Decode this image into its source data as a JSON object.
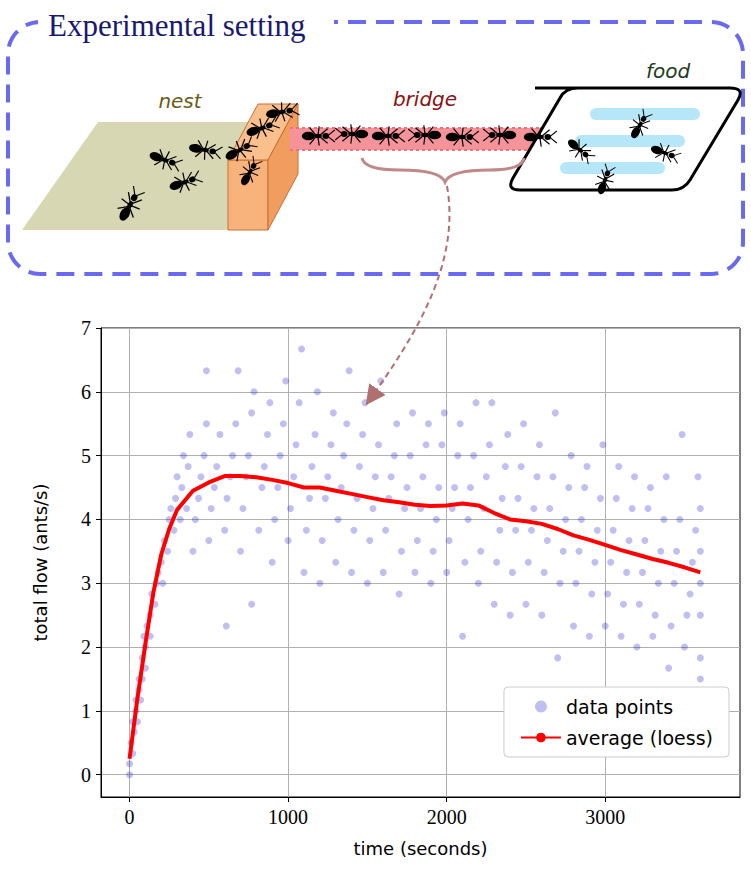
{
  "diagram": {
    "title": "Experimental setting",
    "labels": [
      "nest",
      "bridge",
      "food"
    ]
  },
  "chart_data": {
    "type": "scatter",
    "x_label": "time (seconds)",
    "y_label": "total flow (ants/s)",
    "xlim": [
      -180,
      3850
    ],
    "xticks": [
      0,
      1000,
      2000,
      3000
    ],
    "ylim": [
      -0.35,
      7
    ],
    "yticks": [
      0,
      1,
      2,
      3,
      4,
      5,
      6,
      7
    ],
    "grid": true,
    "legend": "lower right",
    "series": [
      {
        "name": "data points",
        "type": "scatter",
        "color": "#0000cc",
        "marker": "circle",
        "x": [
          0,
          0,
          10,
          20,
          20,
          30,
          40,
          40,
          50,
          60,
          60,
          70,
          80,
          80,
          90,
          100,
          100,
          110,
          130,
          130,
          140,
          160,
          170,
          180,
          200,
          210,
          220,
          240,
          250,
          260,
          280,
          290,
          300,
          320,
          330,
          340,
          360,
          370,
          380,
          400,
          415,
          435,
          450,
          470,
          485,
          500,
          515,
          535,
          550,
          570,
          485,
          600,
          615,
          635,
          650,
          670,
          685,
          610,
          700,
          715,
          735,
          750,
          770,
          785,
          770,
          815,
          835,
          850,
          870,
          885,
          900,
          915,
          935,
          950,
          970,
          985,
          1000,
          1015,
          1035,
          1050,
          1070,
          1085,
          1100,
          1115,
          1135,
          1150,
          1170,
          1185,
          1200,
          1215,
          1235,
          1250,
          1270,
          1285,
          1300,
          1315,
          1335,
          1350,
          1370,
          1385,
          1400,
          1415,
          1435,
          1450,
          1470,
          1485,
          1500,
          1515,
          1535,
          1550,
          1570,
          1585,
          1600,
          1615,
          1635,
          1650,
          1670,
          1685,
          1700,
          1715,
          1735,
          1750,
          1770,
          1785,
          1800,
          1815,
          1835,
          1850,
          1870,
          1885,
          1900,
          1915,
          1935,
          1950,
          1970,
          1985,
          2000,
          2015,
          2035,
          2050,
          2070,
          2085,
          2100,
          2115,
          2135,
          2150,
          2170,
          2185,
          2200,
          2215,
          2235,
          2250,
          2270,
          2285,
          2300,
          2315,
          2335,
          2350,
          2370,
          2385,
          2400,
          2415,
          2435,
          2450,
          2470,
          2485,
          2500,
          2515,
          2535,
          2550,
          2570,
          2585,
          2600,
          2615,
          2635,
          2650,
          2670,
          2685,
          2700,
          2715,
          2735,
          2750,
          2770,
          2785,
          2800,
          2815,
          2835,
          2850,
          2870,
          2885,
          2900,
          2915,
          2935,
          2950,
          2970,
          2985,
          3000,
          3015,
          3035,
          3050,
          3070,
          3085,
          3100,
          3115,
          3135,
          3150,
          3170,
          3185,
          3200,
          3215,
          3235,
          3250,
          3270,
          3285,
          3300,
          3315,
          3335,
          3350,
          3370,
          3385,
          3400,
          3415,
          3435,
          3450,
          3470,
          3485,
          3500,
          3515,
          3535,
          3550,
          3570,
          3585,
          3600,
          3600,
          3600,
          3600,
          3600,
          3600
        ],
        "values": [
          0,
          0.17,
          0.5,
          0.33,
          0.83,
          0.67,
          1,
          1.17,
          0.83,
          1.33,
          1.5,
          1.17,
          1.83,
          1.5,
          2.17,
          2,
          1.67,
          2.33,
          2.5,
          2.17,
          2.83,
          2.67,
          3,
          3.17,
          3.33,
          3,
          3.67,
          3.5,
          4,
          4.17,
          3.83,
          4.33,
          4.67,
          4,
          4.5,
          5,
          4.17,
          4.83,
          5.33,
          3.5,
          4,
          4.33,
          4.67,
          5,
          5.5,
          3.67,
          4.17,
          4.5,
          4.83,
          5.33,
          6.33,
          3.83,
          4.33,
          4.67,
          5,
          5.5,
          6.33,
          2.33,
          3.5,
          4.17,
          4.67,
          5,
          5.67,
          6,
          2.67,
          3.83,
          4.5,
          4.83,
          5.33,
          5.83,
          3.33,
          4,
          4.5,
          5,
          5.5,
          6.17,
          3.67,
          4.17,
          4.67,
          5.17,
          5.83,
          6.67,
          3.17,
          3.83,
          4.33,
          4.83,
          5.33,
          6,
          3,
          3.67,
          4.33,
          4.67,
          5.17,
          5.67,
          3.33,
          4,
          4.5,
          5,
          5.5,
          6.33,
          3.17,
          3.83,
          4.33,
          4.83,
          5.33,
          5.83,
          3,
          3.67,
          4.17,
          4.67,
          5.17,
          6.17,
          3.17,
          3.83,
          4.33,
          4.67,
          5,
          5.5,
          2.83,
          3.5,
          4.17,
          4.5,
          5,
          5.67,
          3.17,
          3.67,
          4.17,
          4.67,
          5.17,
          5.5,
          3,
          3.5,
          4,
          4.5,
          5.17,
          5.67,
          3.17,
          3.67,
          4.17,
          4.5,
          5,
          5.5,
          2.17,
          3.33,
          4,
          4.5,
          5,
          5.83,
          3,
          3.5,
          4.17,
          4.67,
          5.17,
          5.83,
          2.67,
          3.33,
          3.83,
          4.33,
          4.83,
          5.33,
          2.5,
          3.17,
          3.83,
          4.33,
          4.83,
          5.5,
          2.67,
          3.33,
          3.83,
          4.17,
          4.67,
          5.17,
          2.5,
          3.17,
          3.67,
          4.17,
          4.67,
          5.67,
          1.83,
          3,
          3.5,
          4,
          4.5,
          5,
          2.33,
          3,
          3.5,
          4,
          4.5,
          4.83,
          2.17,
          2.83,
          3.33,
          3.83,
          4.33,
          5.17,
          2.33,
          2.83,
          3.33,
          3.83,
          4.33,
          4.83,
          2.17,
          2.67,
          3.17,
          3.67,
          4.17,
          4.67,
          2,
          2.67,
          3.17,
          3.67,
          4.17,
          4.5,
          2.17,
          2.5,
          3,
          3.5,
          4,
          4.67,
          1.67,
          2.33,
          3,
          3.5,
          4,
          5.33,
          2,
          2.5,
          2.83,
          3.33,
          3.83,
          4.67,
          1.5,
          1.83,
          2.5,
          3,
          3.5,
          4.17
        ]
      },
      {
        "name": "average (loess)",
        "type": "line",
        "color": "#ff0000",
        "line_style": "solid",
        "x": [
          0,
          50,
          100,
          150,
          200,
          250,
          300,
          350,
          400,
          500,
          600,
          700,
          800,
          900,
          1000,
          1100,
          1200,
          1300,
          1400,
          1500,
          1600,
          1700,
          1800,
          1900,
          2000,
          2100,
          2200,
          2300,
          2400,
          2500,
          2600,
          2700,
          2800,
          2900,
          3000,
          3100,
          3200,
          3300,
          3400,
          3500,
          3600
        ],
        "values": [
          0.25,
          1.2,
          2.05,
          2.85,
          3.45,
          3.85,
          4.15,
          4.3,
          4.45,
          4.58,
          4.68,
          4.68,
          4.66,
          4.62,
          4.57,
          4.5,
          4.5,
          4.45,
          4.4,
          4.35,
          4.3,
          4.27,
          4.23,
          4.21,
          4.22,
          4.25,
          4.22,
          4.1,
          4.0,
          3.97,
          3.93,
          3.85,
          3.75,
          3.68,
          3.6,
          3.52,
          3.45,
          3.38,
          3.32,
          3.25,
          3.17
        ]
      }
    ]
  }
}
